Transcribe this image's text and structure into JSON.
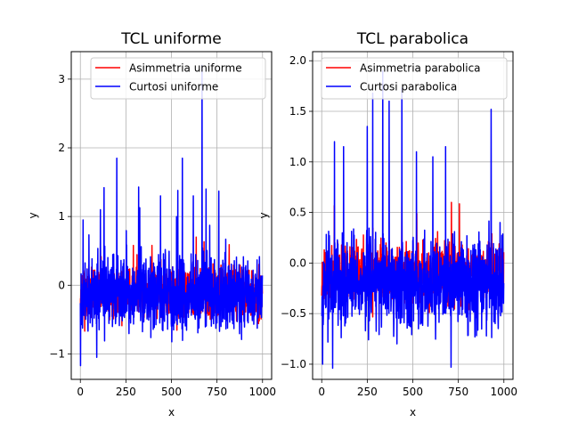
{
  "chart_data": [
    {
      "type": "line",
      "title": "TCL uniforme",
      "xlabel": "x",
      "ylabel": "y",
      "xlim": [
        -50,
        1050
      ],
      "ylim": [
        -1.37,
        3.4
      ],
      "xticks": [
        0,
        250,
        500,
        750,
        1000
      ],
      "xtick_labels": [
        "0",
        "250",
        "500",
        "750",
        "1000"
      ],
      "yticks": [
        -1,
        0,
        1,
        2,
        3
      ],
      "ytick_labels": [
        "−1",
        "0",
        "1",
        "2",
        "3"
      ],
      "grid": true,
      "legend_position": "top-right",
      "x": {
        "start": 0,
        "end": 999,
        "step": 1
      },
      "series": [
        {
          "name": "Asimmetria uniforme",
          "color": "#ff0000",
          "noise": {
            "center": -0.12,
            "amplitude": 0.28,
            "min": -0.88,
            "max": 0.7,
            "seed": 11
          }
        },
        {
          "name": "Curtosi uniforme",
          "color": "#0000ff",
          "noise": {
            "center": -0.12,
            "amplitude": 0.42,
            "min": -1.17,
            "max": 1.45,
            "seed": 23
          }
        }
      ],
      "peaks": [
        {
          "series": 1,
          "x": 15,
          "y": 0.95
        },
        {
          "series": 1,
          "x": 110,
          "y": 1.1
        },
        {
          "series": 1,
          "x": 130,
          "y": 1.42
        },
        {
          "series": 1,
          "x": 200,
          "y": 1.85
        },
        {
          "series": 1,
          "x": 320,
          "y": 1.43
        },
        {
          "series": 1,
          "x": 440,
          "y": 1.3
        },
        {
          "series": 1,
          "x": 535,
          "y": 1.38
        },
        {
          "series": 1,
          "x": 560,
          "y": 1.85
        },
        {
          "series": 1,
          "x": 620,
          "y": 1.3
        },
        {
          "series": 1,
          "x": 668,
          "y": 3.2
        },
        {
          "series": 1,
          "x": 690,
          "y": 1.4
        },
        {
          "series": 1,
          "x": 760,
          "y": 1.37
        },
        {
          "series": 1,
          "x": 1,
          "y": -1.17
        },
        {
          "series": 1,
          "x": 90,
          "y": -1.05
        },
        {
          "series": 0,
          "x": 110,
          "y": 0.62
        }
      ]
    },
    {
      "type": "line",
      "title": "TCL parabolica",
      "xlabel": "x",
      "ylabel": "y",
      "xlim": [
        -50,
        1050
      ],
      "ylim": [
        -1.15,
        2.09
      ],
      "xticks": [
        0,
        250,
        500,
        750,
        1000
      ],
      "xtick_labels": [
        "0",
        "250",
        "500",
        "750",
        "1000"
      ],
      "yticks": [
        -1.0,
        -0.5,
        0.0,
        0.5,
        1.0,
        1.5,
        2.0
      ],
      "ytick_labels": [
        "−1.0",
        "−0.5",
        "0.0",
        "0.5",
        "1.0",
        "1.5",
        "2.0"
      ],
      "grid": true,
      "legend_position": "top-right",
      "x": {
        "start": 0,
        "end": 999,
        "step": 1
      },
      "series": [
        {
          "name": "Asimmetria parabolica",
          "color": "#ff0000",
          "noise": {
            "center": -0.1,
            "amplitude": 0.22,
            "min": -0.7,
            "max": 0.6,
            "seed": 37
          }
        },
        {
          "name": "Curtosi parabolica",
          "color": "#0000ff",
          "noise": {
            "center": -0.18,
            "amplitude": 0.34,
            "min": -1.04,
            "max": 1.0,
            "seed": 53
          }
        }
      ],
      "peaks": [
        {
          "series": 1,
          "x": 70,
          "y": 1.2
        },
        {
          "series": 1,
          "x": 120,
          "y": 1.15
        },
        {
          "series": 1,
          "x": 250,
          "y": 1.35
        },
        {
          "series": 1,
          "x": 280,
          "y": 1.68
        },
        {
          "series": 1,
          "x": 335,
          "y": 1.9
        },
        {
          "series": 1,
          "x": 370,
          "y": 1.6
        },
        {
          "series": 1,
          "x": 440,
          "y": 1.73
        },
        {
          "series": 1,
          "x": 520,
          "y": 1.1
        },
        {
          "series": 1,
          "x": 610,
          "y": 1.05
        },
        {
          "series": 1,
          "x": 680,
          "y": 1.15
        },
        {
          "series": 1,
          "x": 930,
          "y": 1.52
        },
        {
          "series": 1,
          "x": 5,
          "y": -1.0
        },
        {
          "series": 1,
          "x": 60,
          "y": -1.04
        },
        {
          "series": 1,
          "x": 710,
          "y": -1.03
        },
        {
          "series": 0,
          "x": 440,
          "y": 0.6
        }
      ]
    }
  ]
}
